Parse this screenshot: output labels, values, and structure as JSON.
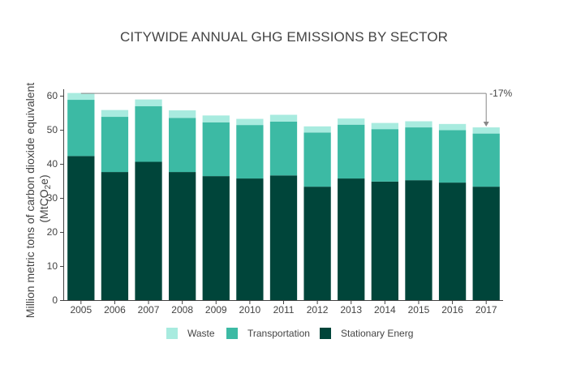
{
  "colors": {
    "waste": "#a8ebdf",
    "transportation": "#3cbaa4",
    "stationary": "#00453a",
    "axis": "#444444",
    "annotation_line": "#888888"
  },
  "chart_data": {
    "type": "bar",
    "stacked": true,
    "title": "CITYWIDE ANNUAL GHG EMISSIONS BY SECTOR",
    "ylabel_line1": "Million metric tons of carbon dioxide equivalent",
    "ylabel_line2_main": "(MtCO",
    "ylabel_line2_sub": "2",
    "ylabel_line2_end": "e)",
    "xlabel": "",
    "ylim": [
      0,
      60
    ],
    "yticks": [
      "0",
      "10",
      "20",
      "30",
      "40",
      "50",
      "60"
    ],
    "grid": false,
    "legend_position": "bottom",
    "categories": [
      "2005",
      "2006",
      "2007",
      "2008",
      "2009",
      "2010",
      "2011",
      "2012",
      "2013",
      "2014",
      "2015",
      "2016",
      "2017"
    ],
    "series": [
      {
        "name": "Stationary Energ",
        "color_key": "stationary",
        "values": [
          42.3,
          37.6,
          40.6,
          37.6,
          36.4,
          35.7,
          36.6,
          33.3,
          35.7,
          34.8,
          35.2,
          34.5,
          33.3
        ]
      },
      {
        "name": "Transportation",
        "color_key": "transportation",
        "values": [
          16.5,
          16.2,
          16.3,
          15.9,
          15.8,
          15.7,
          15.8,
          15.9,
          15.8,
          15.4,
          15.5,
          15.4,
          15.6
        ]
      },
      {
        "name": "Waste",
        "color_key": "waste",
        "values": [
          2.0,
          2.0,
          2.0,
          2.2,
          2.0,
          1.8,
          2.0,
          1.8,
          1.8,
          1.8,
          1.8,
          1.8,
          1.8
        ]
      }
    ],
    "annotation": {
      "label": "-17%",
      "from": "2005",
      "to": "2017"
    }
  }
}
